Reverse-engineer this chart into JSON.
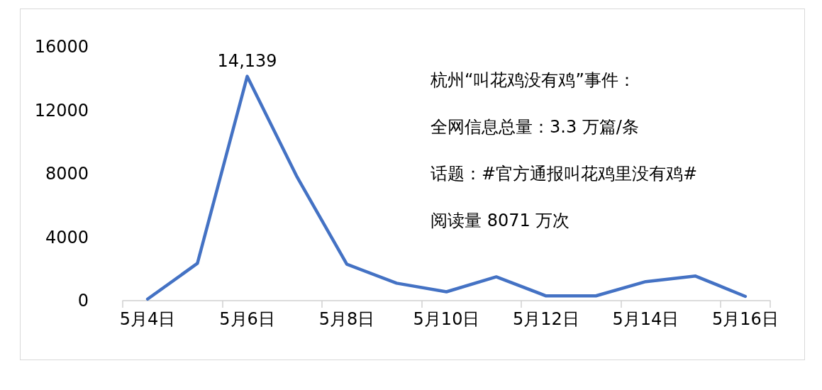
{
  "chart_data": {
    "type": "line",
    "categories": [
      "5月4日",
      null,
      "5月6日",
      null,
      "5月8日",
      null,
      "5月10日",
      null,
      "5月12日",
      null,
      "5月14日",
      null,
      "5月16日"
    ],
    "series": [
      {
        "color": "#4472c4",
        "values": [
          100,
          2350,
          14139,
          7800,
          2300,
          1100,
          560,
          1500,
          300,
          300,
          1200,
          1550,
          270
        ],
        "value_labels": [
          null,
          null,
          "14,139",
          null,
          null,
          null,
          null,
          null,
          null,
          null,
          null,
          null,
          null
        ]
      }
    ],
    "ylim": [
      0,
      16000
    ],
    "yticks": [
      0,
      4000,
      8000,
      12000,
      16000
    ],
    "grid": false,
    "marker": "none",
    "annotations": [
      "杭州“叫花鸡没有鸡”事件：",
      "全网信息总量：3.3 万篇/条",
      "话题：#官方通报叫花鸡里没有鸡#",
      "阅读量 8071 万次"
    ]
  }
}
